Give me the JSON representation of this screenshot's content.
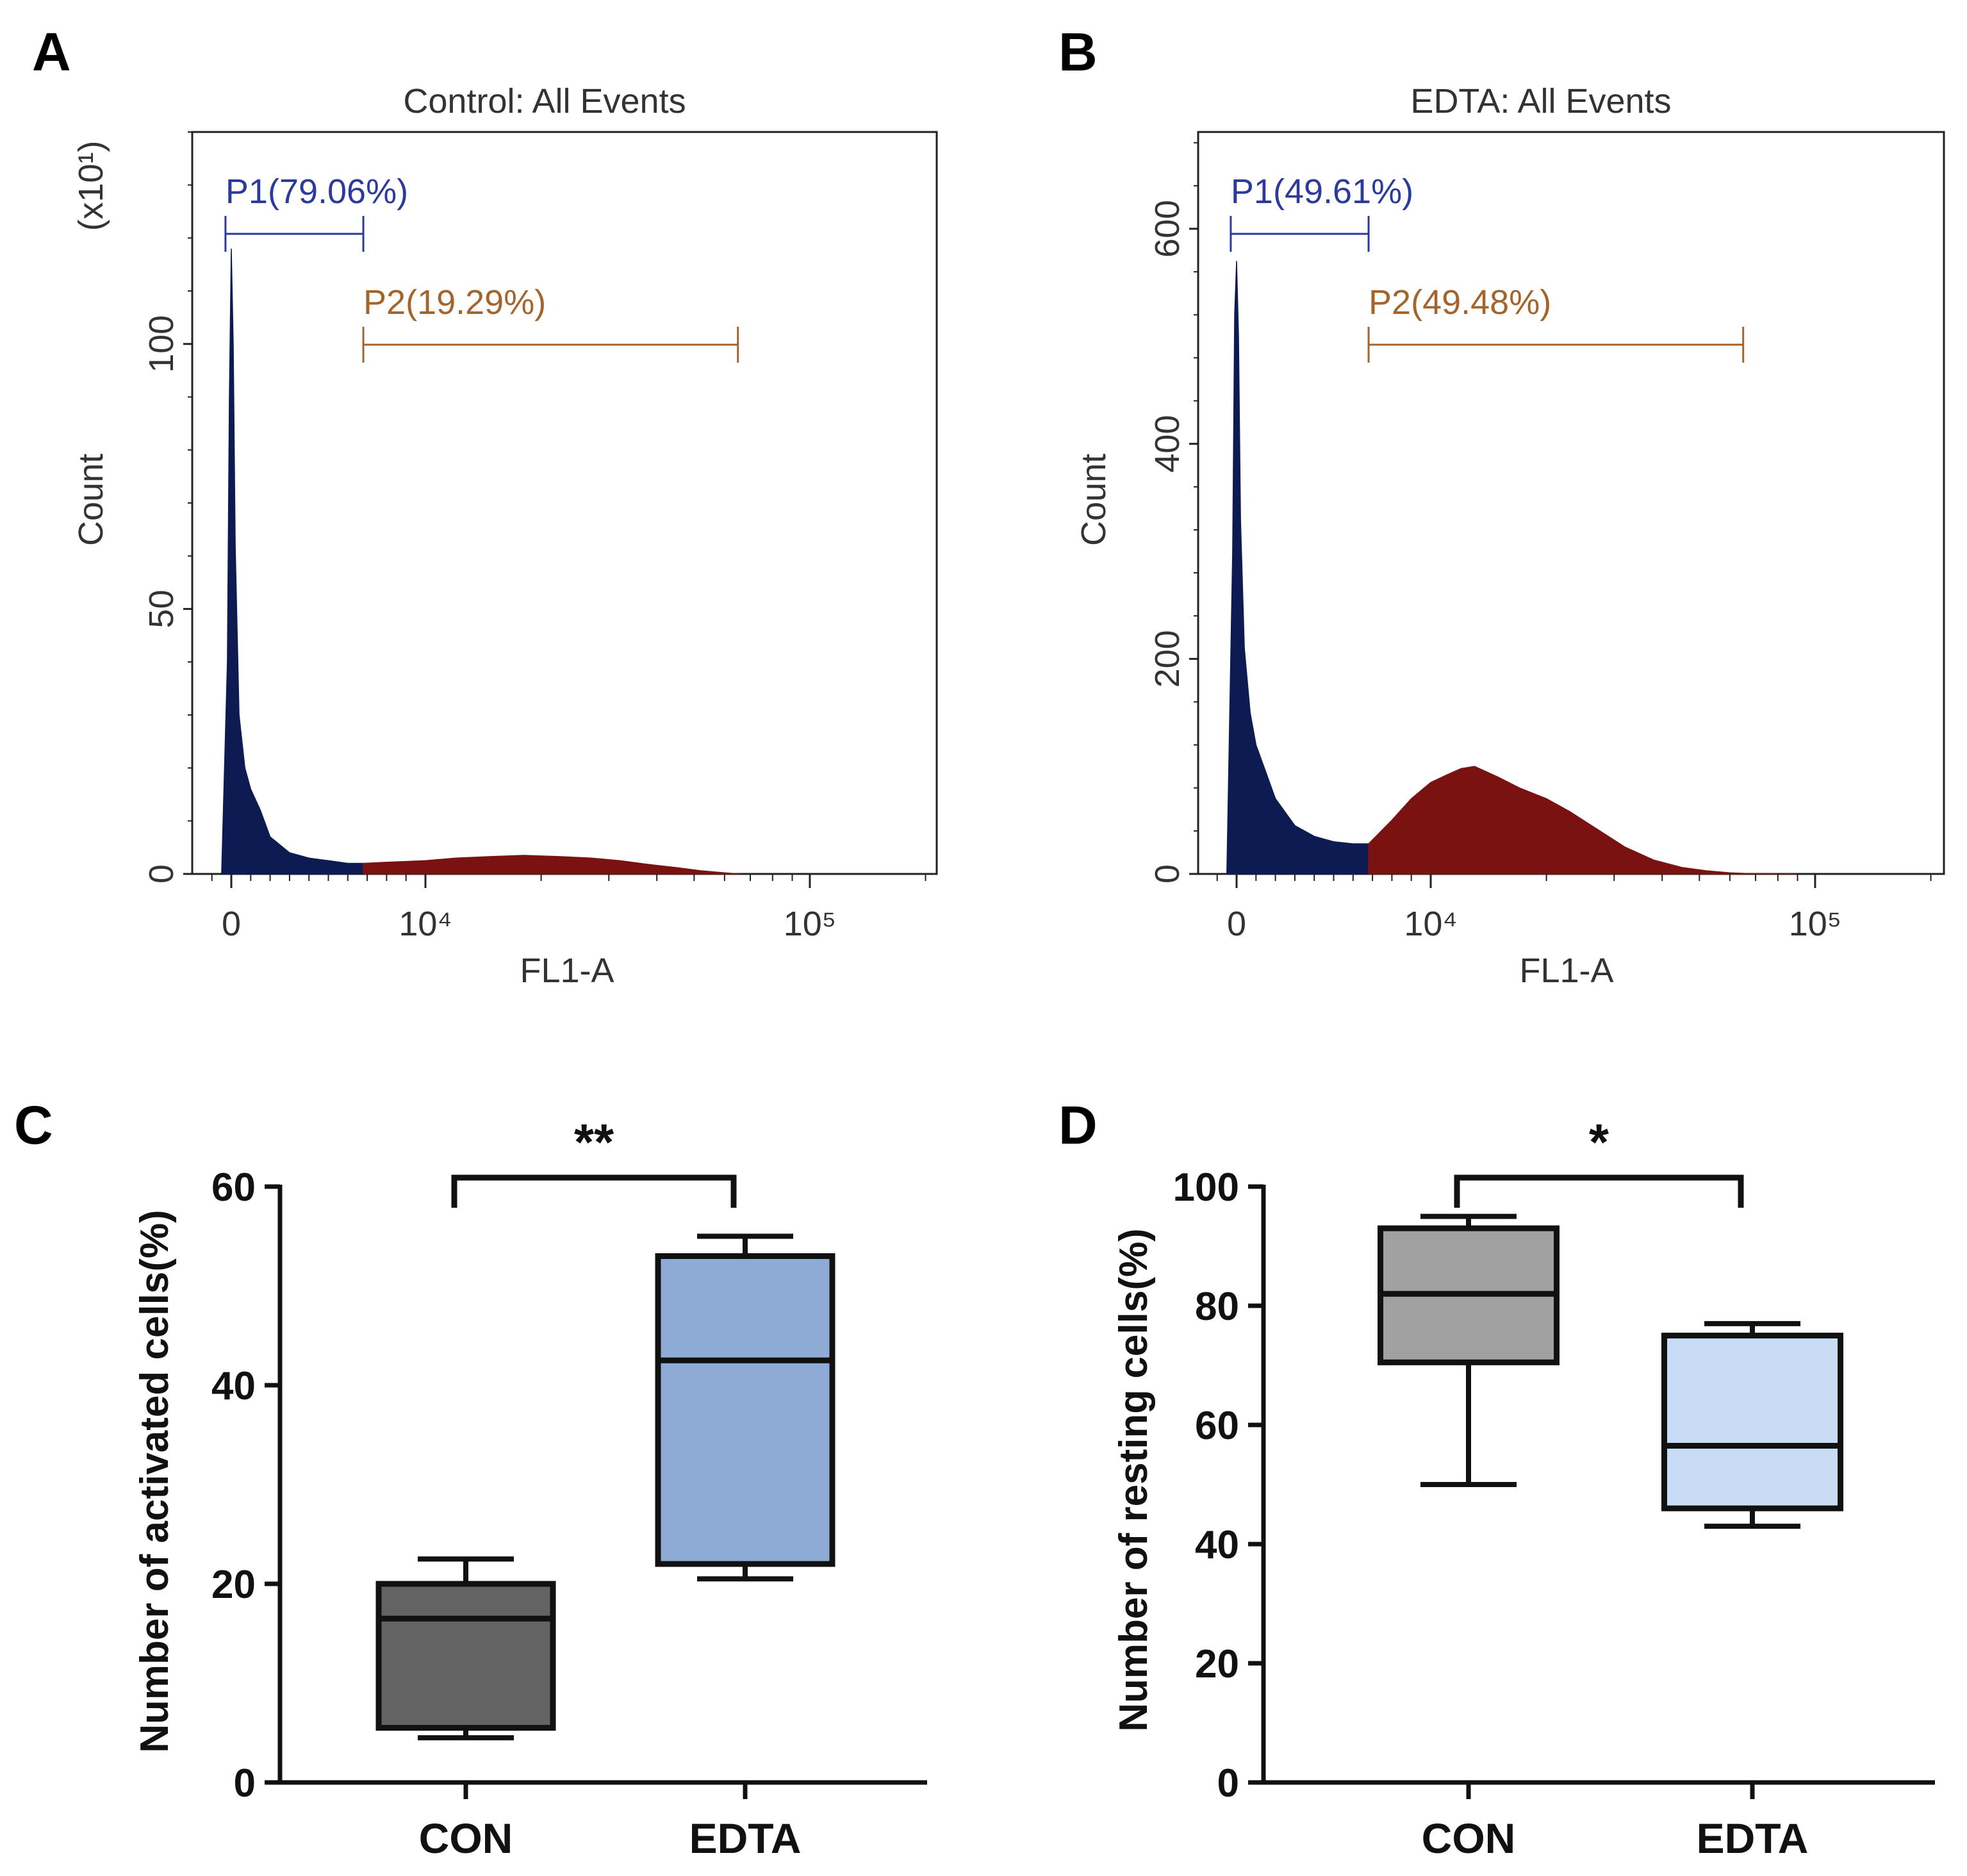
{
  "chart_data": [
    {
      "panel": "A",
      "type": "histogram",
      "title": "Control: All Events",
      "xlabel": "FL1-A",
      "ylabel": "Count",
      "y_multiplier_label": "(x10¹)",
      "y_ticks": [
        0,
        50,
        100
      ],
      "ylim": [
        0,
        140
      ],
      "x_ticks": [
        {
          "value": 0,
          "label": "0"
        },
        {
          "value": 10000,
          "label": "10⁴"
        },
        {
          "value": 100000,
          "label": "10⁵"
        }
      ],
      "gates": [
        {
          "name": "P1",
          "label": "P1(79.06%)",
          "percent": 79.06,
          "color": "#2b3a9b",
          "x_range": [
            -300,
            6800
          ]
        },
        {
          "name": "P2",
          "label": "P2(19.29%)",
          "percent": 19.29,
          "color": "#a3652b",
          "x_range": [
            6800,
            65000
          ]
        }
      ],
      "series": [
        {
          "name": "P1 events",
          "color": "#0e1a52",
          "x": [
            -500,
            -200,
            -100,
            0,
            100,
            200,
            400,
            700,
            1000,
            1500,
            2000,
            3000,
            4000,
            5000,
            6000,
            6800
          ],
          "y": [
            0,
            40,
            90,
            118,
            100,
            62,
            30,
            20,
            16,
            12,
            7,
            4,
            3,
            2.5,
            2,
            2
          ]
        },
        {
          "name": "P2 events",
          "color": "#7a1212",
          "x": [
            6800,
            8000,
            10000,
            12000,
            15000,
            18000,
            22000,
            27000,
            32000,
            38000,
            45000,
            52000,
            60000,
            66000
          ],
          "y": [
            2,
            2.2,
            2.5,
            3,
            3.3,
            3.5,
            3.3,
            3,
            2.5,
            1.8,
            1.2,
            0.6,
            0.2,
            0
          ]
        }
      ]
    },
    {
      "panel": "B",
      "type": "histogram",
      "title": "EDTA: All Events",
      "xlabel": "FL1-A",
      "ylabel": "Count",
      "y_ticks": [
        0,
        200,
        400,
        600
      ],
      "ylim": [
        0,
        690
      ],
      "x_ticks": [
        {
          "value": 0,
          "label": "0"
        },
        {
          "value": 10000,
          "label": "10⁴"
        },
        {
          "value": 100000,
          "label": "10⁵"
        }
      ],
      "gates": [
        {
          "name": "P1",
          "label": "P1(49.61%)",
          "percent": 49.61,
          "color": "#2b3a9b",
          "x_range": [
            -300,
            6800
          ]
        },
        {
          "name": "P2",
          "label": "P2(49.48%)",
          "percent": 49.48,
          "color": "#a3652b",
          "x_range": [
            6800,
            65000
          ]
        }
      ],
      "series": [
        {
          "name": "P1 events",
          "color": "#0e1a52",
          "x": [
            -500,
            -200,
            -100,
            0,
            100,
            200,
            400,
            700,
            1000,
            1500,
            2000,
            3000,
            4000,
            5000,
            6000,
            6800
          ],
          "y": [
            0,
            300,
            520,
            570,
            500,
            330,
            210,
            150,
            120,
            95,
            70,
            45,
            35,
            30,
            28,
            28
          ]
        },
        {
          "name": "P2 events",
          "color": "#7a1212",
          "x": [
            6800,
            8000,
            9000,
            10000,
            11000,
            12000,
            13000,
            15000,
            17000,
            20000,
            23000,
            27000,
            32000,
            38000,
            45000,
            52000,
            60000,
            66000,
            80000,
            90000
          ],
          "y": [
            28,
            50,
            70,
            85,
            92,
            98,
            100,
            90,
            80,
            70,
            58,
            42,
            25,
            13,
            6,
            3,
            1,
            0.5,
            0.3,
            0
          ]
        }
      ]
    },
    {
      "panel": "C",
      "type": "box",
      "ylabel": "Number of activated cells(%)",
      "ylim": [
        0,
        60
      ],
      "y_ticks": [
        0,
        20,
        40,
        60
      ],
      "categories": [
        "CON",
        "EDTA"
      ],
      "boxes": [
        {
          "category": "CON",
          "min": 4.5,
          "q1": 5.5,
          "median": 16.5,
          "q3": 20,
          "max": 22.5,
          "fill": "#636363"
        },
        {
          "category": "EDTA",
          "min": 20.5,
          "q1": 22,
          "median": 42.5,
          "q3": 53,
          "max": 55,
          "fill": "#8eabd6"
        }
      ],
      "significance": "**"
    },
    {
      "panel": "D",
      "type": "box",
      "ylabel": "Number of resting cells(%)",
      "ylim": [
        0,
        100
      ],
      "y_ticks": [
        0,
        20,
        40,
        60,
        80,
        100
      ],
      "categories": [
        "CON",
        "EDTA"
      ],
      "boxes": [
        {
          "category": "CON",
          "min": 50,
          "q1": 70.5,
          "median": 82,
          "q3": 93,
          "max": 95,
          "fill": "#a1a1a1"
        },
        {
          "category": "EDTA",
          "min": 43,
          "q1": 46,
          "median": 56.5,
          "q3": 75,
          "max": 77,
          "fill": "#c8dcf5"
        }
      ],
      "significance": "*"
    }
  ]
}
